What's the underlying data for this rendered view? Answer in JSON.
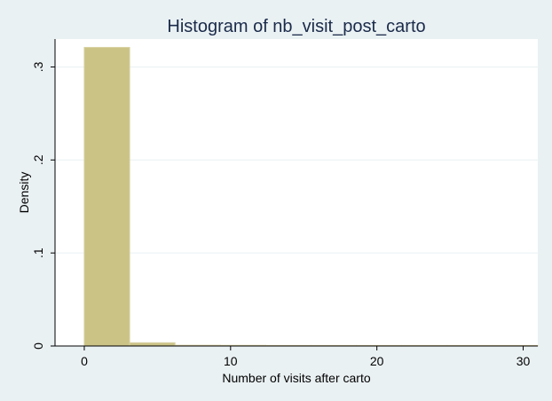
{
  "chart_data": {
    "type": "histogram",
    "title": "Histogram of nb_visit_post_carto",
    "xlabel": "Number of visits after carto",
    "ylabel": "Density",
    "xlim": [
      -2,
      31
    ],
    "ylim": [
      0,
      0.33
    ],
    "x_ticks": [
      0,
      10,
      20,
      30
    ],
    "y_ticks": [
      0,
      0.1,
      0.2,
      0.3
    ],
    "x_tick_labels": [
      "0",
      "10",
      "20",
      "30"
    ],
    "y_tick_labels": [
      "0",
      ".1",
      ".2",
      ".3"
    ],
    "grid": true,
    "bins": [
      {
        "start": 0.0,
        "end": 3.1,
        "value": 0.321
      },
      {
        "start": 3.1,
        "end": 6.2,
        "value": 0.0035
      },
      {
        "start": 6.2,
        "end": 9.3,
        "value": 0.0008
      },
      {
        "start": 9.3,
        "end": 12.4,
        "value": 0.0007
      },
      {
        "start": 12.4,
        "end": 15.5,
        "value": 0.0005
      },
      {
        "start": 15.5,
        "end": 18.6,
        "value": 0.0002
      },
      {
        "start": 18.6,
        "end": 21.7,
        "value": 0.0005
      },
      {
        "start": 21.7,
        "end": 24.8,
        "value": 0.0001
      },
      {
        "start": 24.8,
        "end": 27.9,
        "value": 0.0001
      },
      {
        "start": 27.9,
        "end": 31.0,
        "value": 0.0004
      }
    ],
    "colors": {
      "background": "#eaf1f3",
      "plot_area": "#ffffff",
      "bar_fill": "#cbc386",
      "bar_stroke": "#d8d1a0",
      "grid": "#eaf1f3",
      "axis": "#000000"
    }
  }
}
